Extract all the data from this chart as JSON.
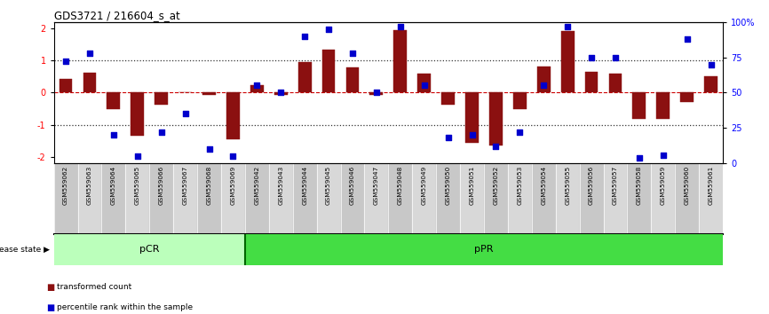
{
  "title": "GDS3721 / 216604_s_at",
  "samples": [
    "GSM559062",
    "GSM559063",
    "GSM559064",
    "GSM559065",
    "GSM559066",
    "GSM559067",
    "GSM559068",
    "GSM559069",
    "GSM559042",
    "GSM559043",
    "GSM559044",
    "GSM559045",
    "GSM559046",
    "GSM559047",
    "GSM559048",
    "GSM559049",
    "GSM559050",
    "GSM559051",
    "GSM559052",
    "GSM559053",
    "GSM559054",
    "GSM559055",
    "GSM559056",
    "GSM559057",
    "GSM559058",
    "GSM559059",
    "GSM559060",
    "GSM559061"
  ],
  "bar_values": [
    0.42,
    0.62,
    -0.52,
    -1.35,
    -0.38,
    0.0,
    -0.08,
    -1.45,
    0.22,
    -0.07,
    0.95,
    1.35,
    0.78,
    -0.08,
    1.95,
    0.58,
    -0.38,
    -1.55,
    -1.65,
    -0.52,
    0.82,
    1.92,
    0.65,
    0.58,
    -0.82,
    -0.82,
    -0.28,
    0.52
  ],
  "percentile_values": [
    72,
    78,
    20,
    5,
    22,
    35,
    10,
    5,
    55,
    50,
    90,
    95,
    78,
    50,
    97,
    55,
    18,
    20,
    12,
    22,
    55,
    97,
    75,
    75,
    4,
    6,
    88,
    70
  ],
  "pCR_count": 8,
  "pPR_count": 20,
  "bar_color": "#8B1010",
  "dot_color": "#0000CC",
  "pCR_color": "#BBFFBB",
  "pPR_color": "#44DD44",
  "dotted_line_color": "#333333",
  "zero_line_color": "#CC0000",
  "ylim": [
    -2.2,
    2.2
  ],
  "yticks_left": [
    -2,
    -1,
    0,
    1,
    2
  ],
  "yticks_right_pct": [
    0,
    25,
    50,
    75,
    100
  ],
  "bar_width": 0.55,
  "legend_bar_label": "transformed count",
  "legend_dot_label": "percentile rank within the sample",
  "disease_state_label": "disease state",
  "stripe_colors": [
    "#C8C8C8",
    "#D8D8D8"
  ]
}
